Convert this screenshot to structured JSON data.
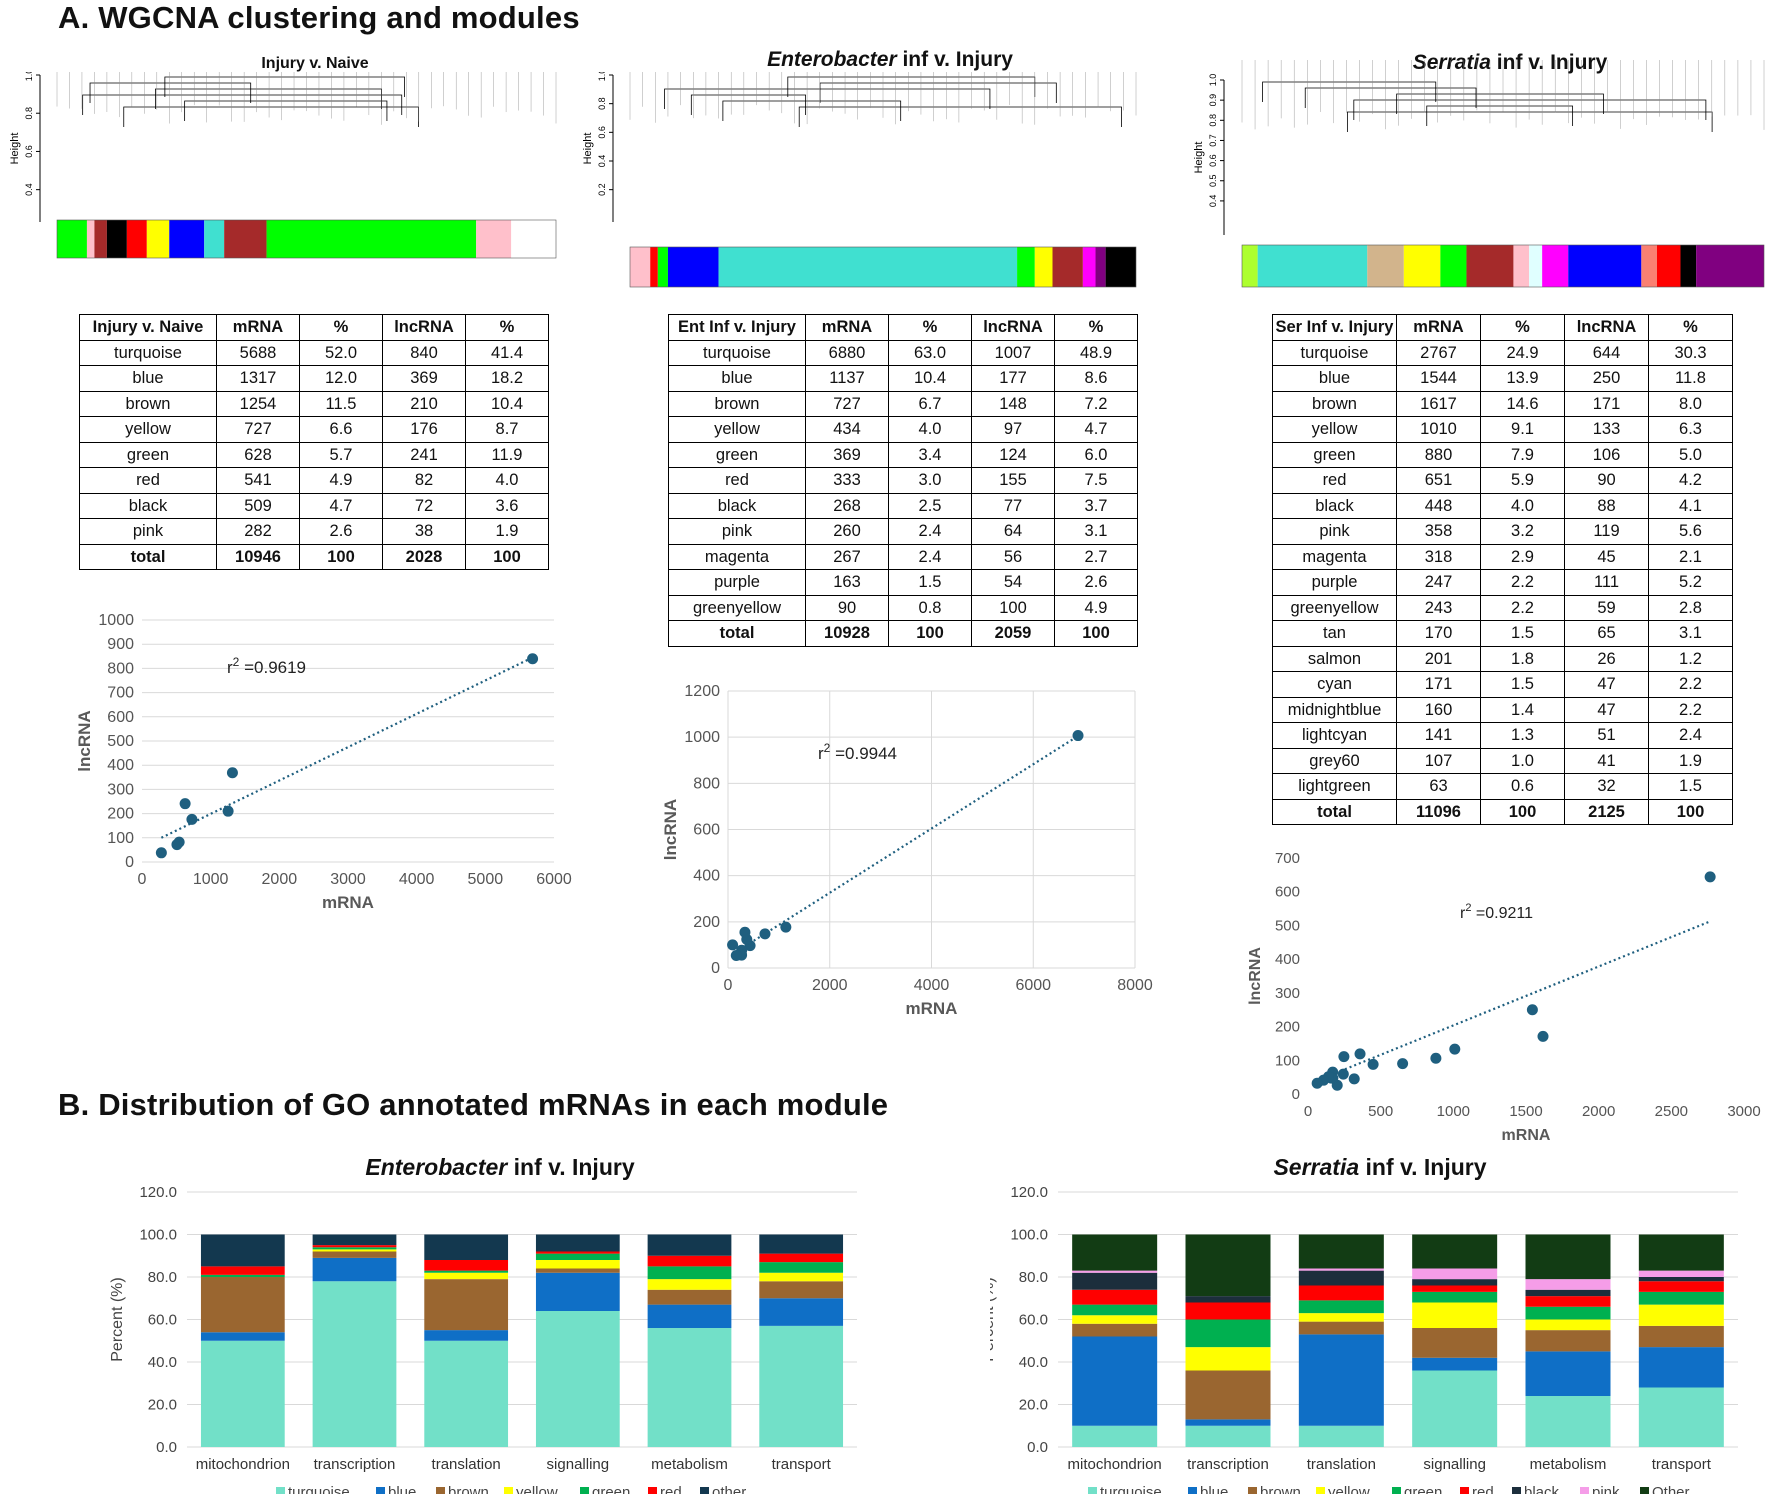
{
  "section_a_title": "A. WGCNA clustering and modules",
  "section_b_title": "B. Distribution of GO annotated mRNAs in each module",
  "dendrograms": [
    {
      "title_prefix": "",
      "title_suffix": "Injury v. Naive",
      "ylabel": "Height",
      "ticks": [
        "1.0",
        "0.8",
        "0.6",
        "0.4"
      ],
      "colors": [
        "#00ff00",
        "#ffc0cb",
        "#a52a2a",
        "#000000",
        "#ff0000",
        "#ffff00",
        "#0000ff",
        "#40e0d0",
        "#a52a2a"
      ]
    },
    {
      "title_prefix": "Enterobacter",
      "title_suffix": " inf v. Injury",
      "ylabel": "Height",
      "ticks": [
        "1.0",
        "0.8",
        "0.6",
        "0.4",
        "0.2"
      ],
      "colors": [
        "#ffc0cb",
        "#ff0000",
        "#00ff00",
        "#0000ff",
        "#40e0d0",
        "#00ff00",
        "#ffff00",
        "#a52a2a",
        "#ff00ff",
        "#800080",
        "#000000"
      ]
    },
    {
      "title_prefix": "Serratia",
      "title_suffix": " inf v. Injury",
      "ylabel": "Height",
      "ticks": [
        "1.0",
        "0.9",
        "0.8",
        "0.7",
        "0.6",
        "0.5",
        "0.4"
      ],
      "colors": [
        "#adff2f",
        "#40e0d0",
        "#d2b48c",
        "#ffff00",
        "#00ff00",
        "#a52a2a",
        "#ffc0cb",
        "#e0ffff",
        "#ff00ff",
        "#0000ff",
        "#fa8072",
        "#ff0000",
        "#000000",
        "#800080"
      ]
    }
  ],
  "tables": [
    {
      "header": [
        "Injury v. Naive",
        "mRNA",
        "%",
        "lncRNA",
        "%"
      ],
      "rows": [
        [
          "turquoise",
          "5688",
          "52.0",
          "840",
          "41.4"
        ],
        [
          "blue",
          "1317",
          "12.0",
          "369",
          "18.2"
        ],
        [
          "brown",
          "1254",
          "11.5",
          "210",
          "10.4"
        ],
        [
          "yellow",
          "727",
          "6.6",
          "176",
          "8.7"
        ],
        [
          "green",
          "628",
          "5.7",
          "241",
          "11.9"
        ],
        [
          "red",
          "541",
          "4.9",
          "82",
          "4.0"
        ],
        [
          "black",
          "509",
          "4.7",
          "72",
          "3.6"
        ],
        [
          "pink",
          "282",
          "2.6",
          "38",
          "1.9"
        ]
      ],
      "total": [
        "total",
        "10946",
        "100",
        "2028",
        "100"
      ]
    },
    {
      "header": [
        "Ent Inf v. Injury",
        "mRNA",
        "%",
        "lncRNA",
        "%"
      ],
      "rows": [
        [
          "turquoise",
          "6880",
          "63.0",
          "1007",
          "48.9"
        ],
        [
          "blue",
          "1137",
          "10.4",
          "177",
          "8.6"
        ],
        [
          "brown",
          "727",
          "6.7",
          "148",
          "7.2"
        ],
        [
          "yellow",
          "434",
          "4.0",
          "97",
          "4.7"
        ],
        [
          "green",
          "369",
          "3.4",
          "124",
          "6.0"
        ],
        [
          "red",
          "333",
          "3.0",
          "155",
          "7.5"
        ],
        [
          "black",
          "268",
          "2.5",
          "77",
          "3.7"
        ],
        [
          "pink",
          "260",
          "2.4",
          "64",
          "3.1"
        ],
        [
          "magenta",
          "267",
          "2.4",
          "56",
          "2.7"
        ],
        [
          "purple",
          "163",
          "1.5",
          "54",
          "2.6"
        ],
        [
          "greenyellow",
          "90",
          "0.8",
          "100",
          "4.9"
        ]
      ],
      "total": [
        "total",
        "10928",
        "100",
        "2059",
        "100"
      ]
    },
    {
      "header": [
        "Ser Inf v. Injury",
        "mRNA",
        "%",
        "lncRNA",
        "%"
      ],
      "rows": [
        [
          "turquoise",
          "2767",
          "24.9",
          "644",
          "30.3"
        ],
        [
          "blue",
          "1544",
          "13.9",
          "250",
          "11.8"
        ],
        [
          "brown",
          "1617",
          "14.6",
          "171",
          "8.0"
        ],
        [
          "yellow",
          "1010",
          "9.1",
          "133",
          "6.3"
        ],
        [
          "green",
          "880",
          "7.9",
          "106",
          "5.0"
        ],
        [
          "red",
          "651",
          "5.9",
          "90",
          "4.2"
        ],
        [
          "black",
          "448",
          "4.0",
          "88",
          "4.1"
        ],
        [
          "pink",
          "358",
          "3.2",
          "119",
          "5.6"
        ],
        [
          "magenta",
          "318",
          "2.9",
          "45",
          "2.1"
        ],
        [
          "purple",
          "247",
          "2.2",
          "111",
          "5.2"
        ],
        [
          "greenyellow",
          "243",
          "2.2",
          "59",
          "2.8"
        ],
        [
          "tan",
          "170",
          "1.5",
          "65",
          "3.1"
        ],
        [
          "salmon",
          "201",
          "1.8",
          "26",
          "1.2"
        ],
        [
          "cyan",
          "171",
          "1.5",
          "47",
          "2.2"
        ],
        [
          "midnightblue",
          "160",
          "1.4",
          "47",
          "2.2"
        ],
        [
          "lightcyan",
          "141",
          "1.3",
          "51",
          "2.4"
        ],
        [
          "grey60",
          "107",
          "1.0",
          "41",
          "1.9"
        ],
        [
          "lightgreen",
          "63",
          "0.6",
          "32",
          "1.5"
        ]
      ],
      "total": [
        "total",
        "11096",
        "100",
        "2125",
        "100"
      ]
    }
  ],
  "chart_data": [
    {
      "type": "scatter",
      "title": "",
      "xlabel": "mRNA",
      "ylabel": "lncRNA",
      "r2_label": "r",
      "r2_sup": "2",
      "r2_value": " =0.9619",
      "xlim": [
        0,
        6000
      ],
      "ylim": [
        0,
        1000
      ],
      "xticks": [
        0,
        1000,
        2000,
        3000,
        4000,
        5000,
        6000
      ],
      "yticks": [
        0,
        100,
        200,
        300,
        400,
        500,
        600,
        700,
        800,
        900,
        1000
      ],
      "x": [
        5688,
        1317,
        1254,
        727,
        628,
        541,
        509,
        282
      ],
      "y": [
        840,
        369,
        210,
        176,
        241,
        82,
        72,
        38
      ],
      "trend_x": [
        282,
        5688
      ],
      "trend_y": [
        100,
        845
      ],
      "point_color": "#1f5f7f",
      "grid": "horizontal"
    },
    {
      "type": "scatter",
      "title": "",
      "xlabel": "mRNA",
      "ylabel": "lncRNA",
      "r2_label": "r",
      "r2_sup": "2",
      "r2_value": " =0.9944",
      "xlim": [
        0,
        8000
      ],
      "ylim": [
        0,
        1200
      ],
      "xticks": [
        0,
        2000,
        4000,
        6000,
        8000
      ],
      "yticks": [
        0,
        200,
        400,
        600,
        800,
        1000,
        1200
      ],
      "x": [
        6880,
        1137,
        727,
        434,
        369,
        333,
        268,
        260,
        267,
        163,
        90
      ],
      "y": [
        1007,
        177,
        148,
        97,
        124,
        155,
        77,
        64,
        56,
        54,
        100
      ],
      "trend_x": [
        90,
        6880
      ],
      "trend_y": [
        60,
        1005
      ],
      "point_color": "#1f5f7f",
      "grid": "both"
    },
    {
      "type": "scatter",
      "title": "",
      "xlabel": "mRNA",
      "ylabel": "lncRNA",
      "r2_label": "r",
      "r2_sup": "2",
      "r2_value": " =0.9211",
      "xlim": [
        0,
        3000
      ],
      "ylim": [
        0,
        700
      ],
      "xticks": [
        0,
        500,
        1000,
        1500,
        2000,
        2500,
        3000
      ],
      "yticks": [
        0,
        100,
        200,
        300,
        400,
        500,
        600,
        700
      ],
      "x": [
        2767,
        1544,
        1617,
        1010,
        880,
        651,
        448,
        358,
        318,
        247,
        243,
        170,
        201,
        171,
        160,
        141,
        107,
        63
      ],
      "y": [
        644,
        250,
        171,
        133,
        106,
        90,
        88,
        119,
        45,
        111,
        59,
        65,
        26,
        47,
        47,
        51,
        41,
        32
      ],
      "trend_x": [
        63,
        2767
      ],
      "trend_y": [
        40,
        512
      ],
      "point_color": "#1f5f7f",
      "grid": "none"
    },
    {
      "type": "bar",
      "stacked": true,
      "title_italic": "Enterobacter",
      "title_rest": " inf v. Injury",
      "ylabel": "Percent (%)",
      "ylim": [
        0,
        120
      ],
      "yticks": [
        "0.0",
        "20.0",
        "40.0",
        "60.0",
        "80.0",
        "100.0",
        "120.0"
      ],
      "categories": [
        "mitochondrion",
        "transcription",
        "translation",
        "signalling",
        "metabolism",
        "transport"
      ],
      "series": [
        {
          "name": "turquoise",
          "color": "#72e0c8",
          "values": [
            50,
            78,
            50,
            64,
            56,
            57
          ]
        },
        {
          "name": "blue",
          "color": "#0f6fc6",
          "values": [
            4,
            11,
            5,
            18,
            11,
            13
          ]
        },
        {
          "name": "brown",
          "color": "#9a6630",
          "values": [
            26,
            3,
            24,
            2,
            7,
            8
          ]
        },
        {
          "name": "yellow",
          "color": "#ffff00",
          "values": [
            0,
            1,
            3,
            4,
            5,
            4
          ]
        },
        {
          "name": "green",
          "color": "#00b050",
          "values": [
            1,
            1,
            1,
            3,
            6,
            5
          ]
        },
        {
          "name": "red",
          "color": "#ff0000",
          "values": [
            4,
            1,
            5,
            1,
            5,
            4
          ]
        },
        {
          "name": "other",
          "color": "#13384f",
          "values": [
            15,
            5,
            12,
            8,
            10,
            9
          ]
        }
      ]
    },
    {
      "type": "bar",
      "stacked": true,
      "title_italic": "Serratia",
      "title_rest": " inf v. Injury",
      "ylabel": "Percent (%)",
      "ylim": [
        0,
        120
      ],
      "yticks": [
        "0.0",
        "20.0",
        "40.0",
        "60.0",
        "80.0",
        "100.0",
        "120.0"
      ],
      "categories": [
        "mitochondrion",
        "transcription",
        "translation",
        "signalling",
        "metabolism",
        "transport"
      ],
      "series": [
        {
          "name": "turquoise",
          "color": "#72e0c8",
          "values": [
            10,
            10,
            10,
            36,
            24,
            28
          ]
        },
        {
          "name": "blue",
          "color": "#0f6fc6",
          "values": [
            42,
            3,
            43,
            6,
            21,
            19
          ]
        },
        {
          "name": "brown",
          "color": "#9a6630",
          "values": [
            6,
            23,
            6,
            14,
            10,
            10
          ]
        },
        {
          "name": "yellow",
          "color": "#ffff00",
          "values": [
            4,
            11,
            4,
            12,
            5,
            10
          ]
        },
        {
          "name": "green",
          "color": "#00b050",
          "values": [
            5,
            13,
            6,
            5,
            6,
            6
          ]
        },
        {
          "name": "red",
          "color": "#ff0000",
          "values": [
            7,
            8,
            7,
            3,
            5,
            5
          ]
        },
        {
          "name": "black",
          "color": "#1c2e3c",
          "values": [
            8,
            3,
            7,
            3,
            3,
            2
          ]
        },
        {
          "name": "pink",
          "color": "#f59de8",
          "values": [
            1,
            0,
            1,
            5,
            5,
            3
          ]
        },
        {
          "name": "Other",
          "color": "#123c14",
          "values": [
            17,
            29,
            16,
            16,
            21,
            17
          ]
        }
      ]
    }
  ]
}
